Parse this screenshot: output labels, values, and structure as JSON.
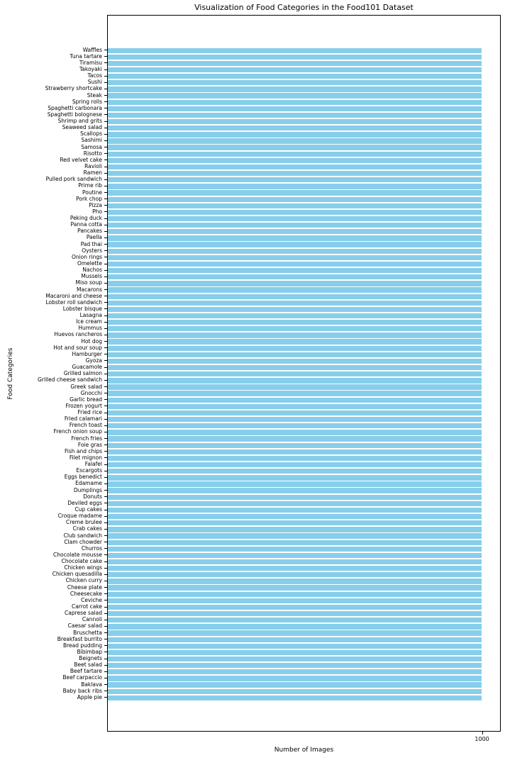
{
  "chart_data": {
    "type": "bar",
    "orientation": "horizontal",
    "title": "Visualization of Food Categories in the Food101 Dataset",
    "xlabel": "Number of Images",
    "ylabel": "Food Categories",
    "xlim": [
      0,
      1050
    ],
    "x_ticks": [
      1000
    ],
    "grid": false,
    "legend": "none",
    "bar_color": "#87CEEB",
    "axis_color": "#000000",
    "background_color": "#ffffff",
    "categories": [
      "Waffles",
      "Tuna tartare",
      "Tiramisu",
      "Takoyaki",
      "Tacos",
      "Sushi",
      "Strawberry shortcake",
      "Steak",
      "Spring rolls",
      "Spaghetti carbonara",
      "Spaghetti bolognese",
      "Shrimp and grits",
      "Seaweed salad",
      "Scallops",
      "Sashimi",
      "Samosa",
      "Risotto",
      "Red velvet cake",
      "Ravioli",
      "Ramen",
      "Pulled pork sandwich",
      "Prime rib",
      "Poutine",
      "Pork chop",
      "Pizza",
      "Pho",
      "Peking duck",
      "Panna cotta",
      "Pancakes",
      "Paella",
      "Pad thai",
      "Oysters",
      "Onion rings",
      "Omelette",
      "Nachos",
      "Mussels",
      "Miso soup",
      "Macarons",
      "Macaroni and cheese",
      "Lobster roll sandwich",
      "Lobster bisque",
      "Lasagna",
      "Ice cream",
      "Hummus",
      "Huevos rancheros",
      "Hot dog",
      "Hot and sour soup",
      "Hamburger",
      "Gyoza",
      "Guacamole",
      "Grilled salmon",
      "Grilled cheese sandwich",
      "Greek salad",
      "Gnocchi",
      "Garlic bread",
      "Frozen yogurt",
      "Fried rice",
      "Fried calamari",
      "French toast",
      "French onion soup",
      "French fries",
      "Foie gras",
      "Fish and chips",
      "Filet mignon",
      "Falafel",
      "Escargots",
      "Eggs benedict",
      "Edamame",
      "Dumplings",
      "Donuts",
      "Deviled eggs",
      "Cup cakes",
      "Croque madame",
      "Creme brulee",
      "Crab cakes",
      "Club sandwich",
      "Clam chowder",
      "Churros",
      "Chocolate mousse",
      "Chocolate cake",
      "Chicken wings",
      "Chicken quesadilla",
      "Chicken curry",
      "Cheese plate",
      "Cheesecake",
      "Ceviche",
      "Carrot cake",
      "Caprese salad",
      "Cannoli",
      "Caesar salad",
      "Bruschetta",
      "Breakfast burrito",
      "Bread pudding",
      "Bibimbap",
      "Beignets",
      "Beet salad",
      "Beef tartare",
      "Beef carpaccio",
      "Baklava",
      "Baby back ribs",
      "Apple pie"
    ],
    "values": [
      1000,
      1000,
      1000,
      1000,
      1000,
      1000,
      1000,
      1000,
      1000,
      1000,
      1000,
      1000,
      1000,
      1000,
      1000,
      1000,
      1000,
      1000,
      1000,
      1000,
      1000,
      1000,
      1000,
      1000,
      1000,
      1000,
      1000,
      1000,
      1000,
      1000,
      1000,
      1000,
      1000,
      1000,
      1000,
      1000,
      1000,
      1000,
      1000,
      1000,
      1000,
      1000,
      1000,
      1000,
      1000,
      1000,
      1000,
      1000,
      1000,
      1000,
      1000,
      1000,
      1000,
      1000,
      1000,
      1000,
      1000,
      1000,
      1000,
      1000,
      1000,
      1000,
      1000,
      1000,
      1000,
      1000,
      1000,
      1000,
      1000,
      1000,
      1000,
      1000,
      1000,
      1000,
      1000,
      1000,
      1000,
      1000,
      1000,
      1000,
      1000,
      1000,
      1000,
      1000,
      1000,
      1000,
      1000,
      1000,
      1000,
      1000,
      1000,
      1000,
      1000,
      1000,
      1000,
      1000,
      1000,
      1000,
      1000,
      1000,
      1000
    ]
  }
}
